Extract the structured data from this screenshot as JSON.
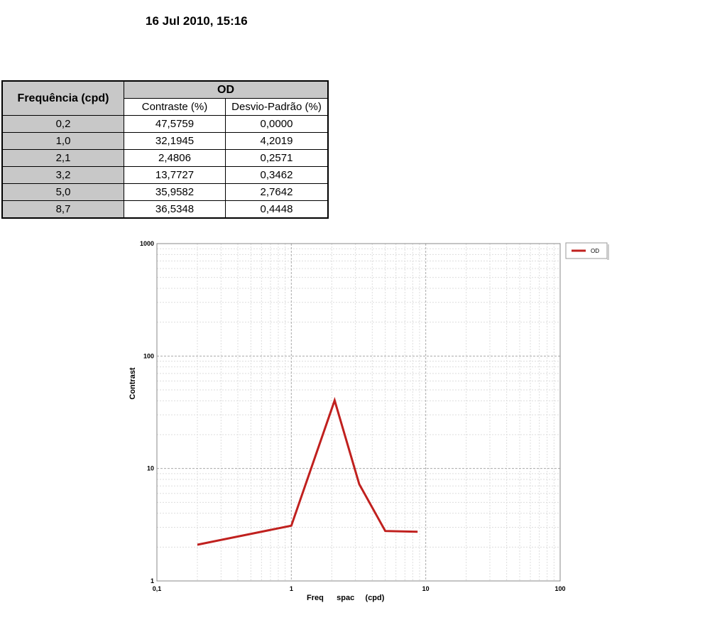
{
  "header": {
    "timestamp": "16 Jul 2010, 15:16"
  },
  "table": {
    "columns": {
      "frequency": "Frequência (cpd)",
      "group": "OD",
      "sub": [
        "Contraste (%)",
        "Desvio-Padrão (%)"
      ]
    },
    "rows": [
      [
        "0,2",
        "47,5759",
        "0,0000"
      ],
      [
        "1,0",
        "32,1945",
        "4,2019"
      ],
      [
        "2,1",
        "2,4806",
        "0,2571"
      ],
      [
        "3,2",
        "13,7727",
        "0,3462"
      ],
      [
        "5,0",
        "35,9582",
        "2,7642"
      ],
      [
        "8,7",
        "36,5348",
        "0,4448"
      ]
    ]
  },
  "chart_data": {
    "type": "line",
    "x_label": "Freq      spac     (cpd)",
    "y_label": "Contrast",
    "x": [
      0.2,
      1.0,
      2.1,
      3.2,
      5.0,
      8.7
    ],
    "series": [
      {
        "name": "OD",
        "color": "#c0201e",
        "values": [
          2.1,
          3.1,
          40.3,
          7.26,
          2.78,
          2.74
        ]
      }
    ],
    "xlim": [
      0.1,
      100
    ],
    "ylim": [
      1,
      1000
    ],
    "xticks": [
      {
        "value": 0.1,
        "label": "0,1"
      },
      1,
      10,
      100
    ],
    "yticks": [
      1,
      10,
      100,
      1000
    ],
    "xscale": "log",
    "yscale": "log",
    "grid": true,
    "legend": "right"
  }
}
